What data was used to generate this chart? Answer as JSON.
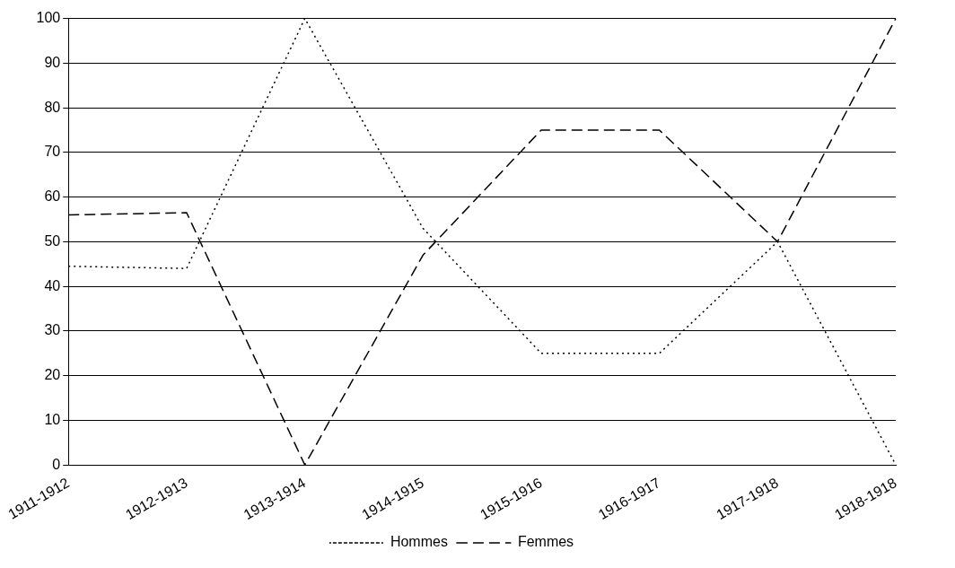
{
  "chart_data": {
    "type": "line",
    "categories": [
      "1911-1912",
      "1912-1913",
      "1913-1914",
      "1914-1915",
      "1915-1916",
      "1916-1917",
      "1917-1918",
      "1918-1918"
    ],
    "series": [
      {
        "name": "Hommes",
        "color": "#000000",
        "line_style": "dotted",
        "values": [
          44.5,
          44,
          100,
          53,
          25,
          25,
          50,
          0
        ]
      },
      {
        "name": "Femmes",
        "color": "#000000",
        "line_style": "dashed",
        "values": [
          56,
          56.5,
          0,
          47,
          75,
          75,
          50,
          100
        ]
      }
    ],
    "ylim": [
      0,
      100
    ],
    "yticks": [
      0,
      10,
      20,
      30,
      40,
      50,
      60,
      70,
      80,
      90,
      100
    ],
    "grid": "y",
    "legend": "bottom",
    "marker": "none"
  }
}
